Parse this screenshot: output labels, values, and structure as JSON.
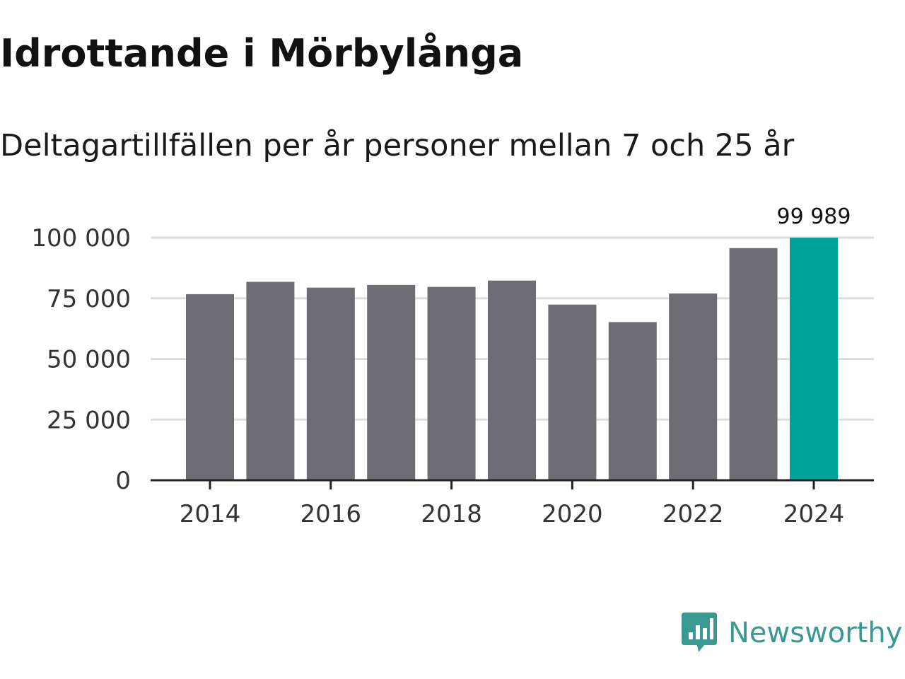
{
  "title": "Idrottande i Mörbylånga",
  "subtitle": "Deltagartillfällen per år personer mellan 7 och 25 år",
  "brand": {
    "name": "Newsworthy",
    "icon": "bar-chart-speech-bubble-icon",
    "color": "#3a9a92"
  },
  "colors": {
    "bar": "#6e6d73",
    "highlight": "#00a398",
    "grid": "#dedede",
    "axis": "#222222"
  },
  "chart_data": {
    "type": "bar",
    "title": "Idrottande i Mörbylånga",
    "subtitle": "Deltagartillfällen per år personer mellan 7 och 25 år",
    "xlabel": "",
    "ylabel": "",
    "categories": [
      "2014",
      "2015",
      "2016",
      "2017",
      "2018",
      "2019",
      "2020",
      "2021",
      "2022",
      "2023",
      "2024"
    ],
    "values": [
      76700,
      81800,
      79400,
      80500,
      79700,
      82300,
      72400,
      65200,
      77000,
      95700,
      99989
    ],
    "highlight_index": 10,
    "value_label": {
      "index": 10,
      "text": "99 989"
    },
    "ylim": [
      0,
      100000
    ],
    "y_ticks": [
      {
        "value": 0,
        "label": "0"
      },
      {
        "value": 25000,
        "label": "25 000"
      },
      {
        "value": 50000,
        "label": "50 000"
      },
      {
        "value": 75000,
        "label": "75 000"
      },
      {
        "value": 100000,
        "label": "100 000"
      }
    ],
    "x_ticks": [
      "2014",
      "2016",
      "2018",
      "2020",
      "2022",
      "2024"
    ],
    "grid": true,
    "legend": "none"
  }
}
